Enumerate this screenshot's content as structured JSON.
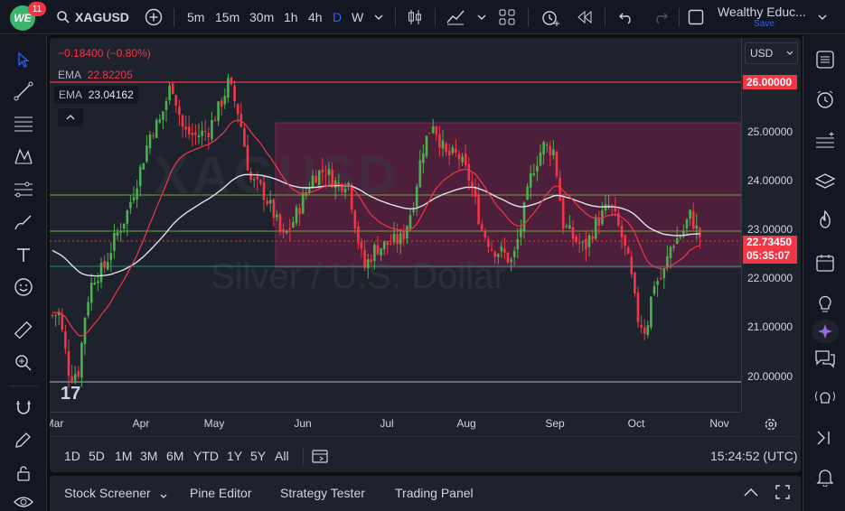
{
  "topbar": {
    "logo_text": "WE",
    "notification_count": "11",
    "symbol": "XAGUSD",
    "intervals": [
      "5m",
      "15m",
      "30m",
      "1h",
      "4h",
      "D",
      "W"
    ],
    "active_interval": "D",
    "layout_name": "Wealthy Educ...",
    "save_label": "Save"
  },
  "legend": {
    "change": "−0.18400 (−0.80%)",
    "ema1_label": "EMA",
    "ema1_value": "22.82205",
    "ema2_label": "EMA",
    "ema2_value": "23.04162"
  },
  "watermark": {
    "symbol_text": "XAGUSD",
    "description": "Silver / U.S. Dollar"
  },
  "price_axis": {
    "currency": "USD",
    "ticks": [
      "25.00000",
      "24.00000",
      "23.00000",
      "22.00000",
      "21.00000",
      "20.00000"
    ],
    "line_label": "26.00000",
    "last_price": "22.73450",
    "countdown": "05:35:07"
  },
  "time_axis": {
    "labels": [
      "Mar",
      "Apr",
      "May",
      "Jun",
      "Jul",
      "Aug",
      "Sep",
      "Oct",
      "Nov"
    ]
  },
  "range_bar": {
    "ranges": [
      "1D",
      "5D",
      "1M",
      "3M",
      "6M",
      "YTD",
      "1Y",
      "5Y",
      "All"
    ],
    "clock": "15:24:52 (UTC)"
  },
  "bottom_panel": {
    "tabs": [
      "Stock Screener",
      "Pine Editor",
      "Strategy Tester",
      "Trading Panel"
    ]
  },
  "colors": {
    "up": "#26a69a",
    "candle_up": "#4caf50",
    "candle_down": "#f23645",
    "ema_fast": "#f23645",
    "ema_slow": "#e0e3eb",
    "rect_fill": "#5a1f3e",
    "hline_red": "#f23645",
    "hline_green": "#8bc34a"
  }
}
